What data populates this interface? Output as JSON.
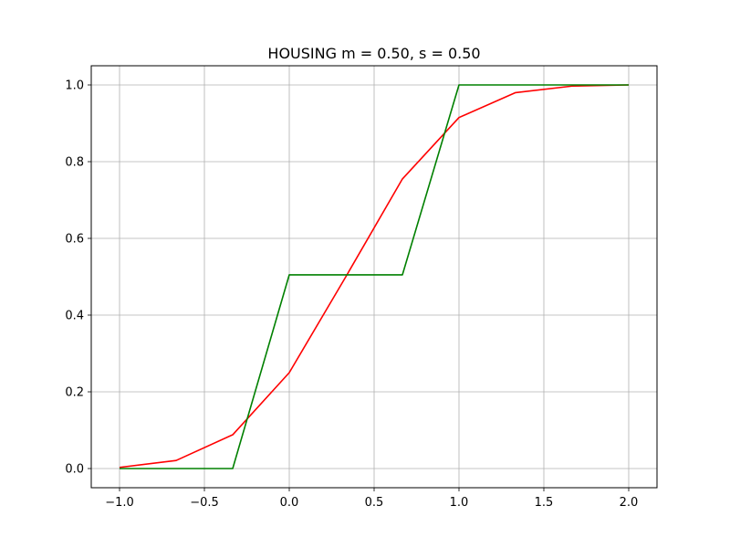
{
  "chart_data": {
    "type": "line",
    "title": "HOUSING  m = 0.50,  s = 0.50",
    "xlabel": "",
    "ylabel": "",
    "xlim": [
      -1.1667,
      2.1667
    ],
    "ylim": [
      -0.05,
      1.05
    ],
    "xticks": [
      -1.0,
      -0.5,
      0.0,
      0.5,
      1.0,
      1.5,
      2.0
    ],
    "xtick_labels": [
      "−1.0",
      "−0.5",
      "0.0",
      "0.5",
      "1.0",
      "1.5",
      "2.0"
    ],
    "yticks": [
      0.0,
      0.2,
      0.4,
      0.6,
      0.8,
      1.0
    ],
    "ytick_labels": [
      "0.0",
      "0.2",
      "0.4",
      "0.6",
      "0.8",
      "1.0"
    ],
    "grid": true,
    "series": [
      {
        "color": "#ff0000",
        "x": [
          -1.0,
          -0.6667,
          -0.3333,
          0.0,
          0.3333,
          0.6667,
          1.0,
          1.3333,
          1.6667,
          2.0
        ],
        "y": [
          0.003,
          0.021,
          0.088,
          0.25,
          0.5,
          0.755,
          0.915,
          0.98,
          0.997,
          1.0
        ]
      },
      {
        "color": "#008000",
        "x": [
          -1.0,
          -0.6667,
          -0.3333,
          0.0,
          0.3333,
          0.6667,
          1.0,
          1.3333,
          1.6667,
          2.0
        ],
        "y": [
          0.0,
          0.0,
          0.0,
          0.505,
          0.505,
          0.505,
          1.0,
          1.0,
          1.0,
          1.0
        ]
      }
    ]
  }
}
